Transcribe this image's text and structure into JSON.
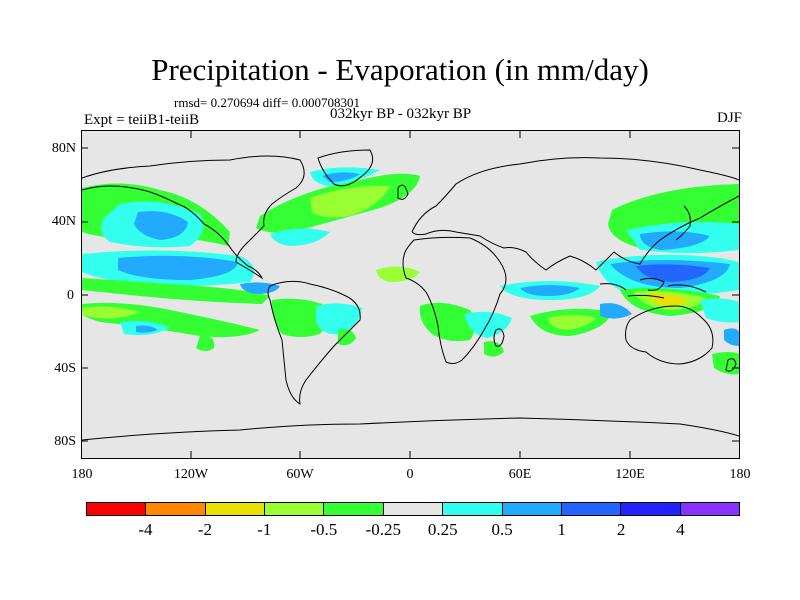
{
  "title": "Precipitation - Evaporation (in mm/day)",
  "stats_line": "rmsd= 0.270694 diff= 0.000708301",
  "experiment": "Expt = teiiB1-teiiB",
  "period": "032kyr BP - 032kyr BP",
  "season": "DJF",
  "map": {
    "background_color": "#e6e6e6",
    "coastline_color": "#000000",
    "lat_labels": [
      "80N",
      "40N",
      "0",
      "40S",
      "80S"
    ],
    "lon_labels": [
      "180",
      "120W",
      "60W",
      "0",
      "60E",
      "120E",
      "180"
    ]
  },
  "colorbar": {
    "colors": [
      "#ff0000",
      "#ff8800",
      "#e8e000",
      "#99ff33",
      "#33ff33",
      "#e6e6e6",
      "#33ffee",
      "#22aaff",
      "#2266ff",
      "#2222ff",
      "#8833ff"
    ],
    "labels": [
      "-4",
      "-2",
      "-1",
      "-0.5",
      "-0.25",
      "0.25",
      "0.5",
      "1",
      "2",
      "4"
    ]
  }
}
